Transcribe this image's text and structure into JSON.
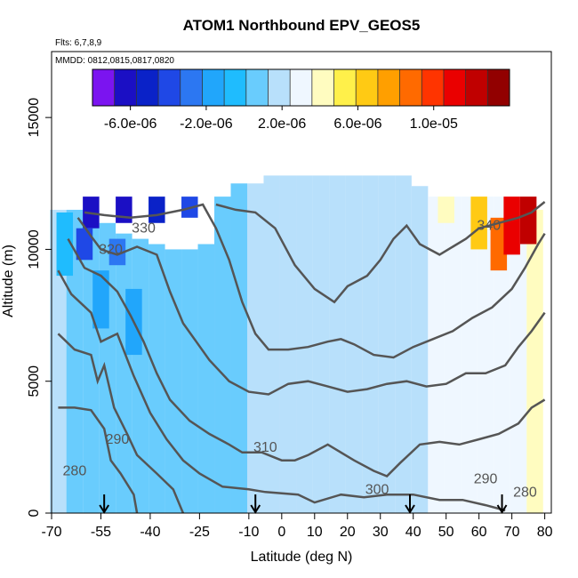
{
  "chart_data": {
    "type": "heatmap",
    "title": "ATOM1 Northbound EPV_GEOS5",
    "flights_label": "Flts: 6,7,8,9",
    "dates_label": "MMDD: 0812,0815,0817,0820",
    "xlabel": "Latitude (deg N)",
    "ylabel": "Altitude (m)",
    "xlim": [
      -70,
      82
    ],
    "ylim": [
      0,
      17500
    ],
    "x_ticks": [
      -70,
      -55,
      -40,
      -25,
      -10,
      0,
      10,
      20,
      30,
      40,
      50,
      60,
      70,
      80
    ],
    "x_tick_labels": [
      "-70",
      "-55",
      "-40",
      "-25",
      "-10",
      "0",
      "10",
      "20",
      "30",
      "40",
      "50",
      "60",
      "70",
      "80"
    ],
    "y_ticks": [
      0,
      5000,
      10000,
      15000
    ],
    "y_tick_labels": [
      "0",
      "5000",
      "10000",
      "15000"
    ],
    "colorbar": {
      "min": -8e-06,
      "max": 1.4e-05,
      "tick_values": [
        -6e-06,
        -2e-06,
        2e-06,
        6e-06,
        1e-05
      ],
      "tick_labels": [
        "-6.0e-06",
        "-2.0e-06",
        "2.0e-06",
        "6.0e-06",
        "1.0e-05"
      ],
      "colors": [
        "#7b14f0",
        "#1b0fc4",
        "#0a22c8",
        "#1f48e6",
        "#2c77f2",
        "#21a6fb",
        "#1fbcfe",
        "#69ccfd",
        "#b8e0fb",
        "#eff7ff",
        "#fffcc0",
        "#fff04a",
        "#ffca14",
        "#ff9f00",
        "#ff6a00",
        "#ff3400",
        "#ea0000",
        "#c00000",
        "#920000"
      ]
    },
    "cells": [
      [
        -68,
        0,
        11500,
        1.6e-06
      ],
      [
        -63,
        0,
        11500,
        1.2e-06
      ],
      [
        -58,
        0,
        11500,
        6e-07
      ],
      [
        -53,
        0,
        11000,
        8e-07
      ],
      [
        -48,
        0,
        10600,
        6e-07
      ],
      [
        -43,
        0,
        10400,
        8e-07
      ],
      [
        -38,
        0,
        10200,
        1e-06
      ],
      [
        -33,
        0,
        10000,
        1.2e-06
      ],
      [
        -28,
        0,
        10000,
        1.2e-06
      ],
      [
        -23,
        0,
        10200,
        1.2e-06
      ],
      [
        -18,
        0,
        12000,
        1.2e-06
      ],
      [
        -13,
        0,
        12500,
        1.2e-06
      ],
      [
        -8,
        0,
        12500,
        1.4e-06
      ],
      [
        -3,
        0,
        12800,
        1.4e-06
      ],
      [
        2,
        0,
        12800,
        1.4e-06
      ],
      [
        7,
        0,
        12800,
        1.6e-06
      ],
      [
        12,
        0,
        12800,
        1.6e-06
      ],
      [
        17,
        0,
        12800,
        1.8e-06
      ],
      [
        22,
        0,
        12800,
        1.8e-06
      ],
      [
        27,
        0,
        12800,
        2e-06
      ],
      [
        32,
        0,
        12800,
        2e-06
      ],
      [
        37,
        0,
        12800,
        2.2e-06
      ],
      [
        42,
        0,
        12400,
        2.4e-06
      ],
      [
        47,
        0,
        12000,
        2.6e-06
      ],
      [
        52,
        0,
        12000,
        2.6e-06
      ],
      [
        57,
        0,
        12000,
        2.8e-06
      ],
      [
        62,
        0,
        12000,
        3e-06
      ],
      [
        67,
        0,
        12000,
        3.2e-06
      ],
      [
        72,
        0,
        12000,
        3.4e-06
      ],
      [
        77,
        0,
        11500,
        3.6e-06
      ],
      [
        -66,
        9000,
        11400,
        -6e-07
      ],
      [
        -58,
        10800,
        12000,
        -6.6e-06
      ],
      [
        -48,
        11000,
        12000,
        -6e-06
      ],
      [
        -38,
        11000,
        12000,
        -5e-06
      ],
      [
        -28,
        11200,
        12000,
        -4e-06
      ],
      [
        -60,
        9600,
        10800,
        -3.6e-06
      ],
      [
        -50,
        9400,
        10400,
        -2.4e-06
      ],
      [
        -55,
        7000,
        9200,
        -1.6e-06
      ],
      [
        -45,
        6000,
        8500,
        -1.2e-06
      ],
      [
        50,
        11000,
        12000,
        4e-06
      ],
      [
        60,
        10000,
        12000,
        7e-06
      ],
      [
        66,
        9200,
        11200,
        9e-06
      ],
      [
        70,
        9800,
        12000,
        1.1e-05
      ],
      [
        75,
        10200,
        12000,
        1.25e-05
      ]
    ],
    "contours": [
      {
        "level": "280",
        "points": [
          [
            -68,
            4000
          ],
          [
            -63,
            4000
          ],
          [
            -58,
            3900
          ],
          [
            -54,
            3200
          ],
          [
            -52,
            2000
          ],
          [
            -49,
            1500
          ],
          [
            -45,
            700
          ],
          [
            -44,
            0
          ]
        ]
      },
      {
        "level": "290",
        "points": [
          [
            -68,
            6800
          ],
          [
            -63,
            6200
          ],
          [
            -58,
            6000
          ],
          [
            -56,
            5000
          ],
          [
            -54,
            5600
          ],
          [
            -51,
            4000
          ],
          [
            -47,
            3000
          ],
          [
            -44,
            2200
          ],
          [
            -38,
            1500
          ],
          [
            -33,
            900
          ],
          [
            -30,
            0
          ]
        ]
      },
      {
        "level": "300",
        "points": [
          [
            -68,
            9200
          ],
          [
            -64,
            8300
          ],
          [
            -58,
            7600
          ],
          [
            -55,
            6500
          ],
          [
            -50,
            6800
          ],
          [
            -45,
            5200
          ],
          [
            -40,
            3800
          ],
          [
            -35,
            2800
          ],
          [
            -30,
            2000
          ],
          [
            -25,
            1500
          ],
          [
            -18,
            1000
          ],
          [
            -10,
            900
          ],
          [
            -5,
            800
          ],
          [
            5,
            700
          ],
          [
            10,
            400
          ],
          [
            18,
            700
          ],
          [
            25,
            600
          ],
          [
            32,
            700
          ],
          [
            40,
            700
          ],
          [
            48,
            500
          ],
          [
            55,
            500
          ],
          [
            62,
            300
          ],
          [
            68,
            100
          ]
        ]
      },
      {
        "level": "310",
        "points": [
          [
            -65,
            10400
          ],
          [
            -60,
            9300
          ],
          [
            -55,
            9000
          ],
          [
            -50,
            8400
          ],
          [
            -46,
            7500
          ],
          [
            -42,
            6500
          ],
          [
            -38,
            5300
          ],
          [
            -34,
            4300
          ],
          [
            -28,
            3500
          ],
          [
            -22,
            3000
          ],
          [
            -16,
            2600
          ],
          [
            -12,
            2300
          ],
          [
            -6,
            2300
          ],
          [
            0,
            2000
          ],
          [
            4,
            2000
          ],
          [
            8,
            2200
          ],
          [
            14,
            2600
          ],
          [
            22,
            2000
          ],
          [
            28,
            1600
          ],
          [
            32,
            1400
          ],
          [
            36,
            1900
          ],
          [
            42,
            2600
          ],
          [
            48,
            2700
          ],
          [
            54,
            2600
          ],
          [
            60,
            2800
          ],
          [
            66,
            3000
          ],
          [
            72,
            3400
          ],
          [
            76,
            4000
          ],
          [
            80,
            4300
          ]
        ]
      },
      {
        "level": "320",
        "points": [
          [
            -62,
            11200
          ],
          [
            -58,
            10500
          ],
          [
            -55,
            10000
          ],
          [
            -50,
            9800
          ],
          [
            -44,
            10100
          ],
          [
            -38,
            9800
          ],
          [
            -34,
            8400
          ],
          [
            -30,
            7200
          ],
          [
            -26,
            6500
          ],
          [
            -22,
            5800
          ],
          [
            -16,
            5000
          ],
          [
            -10,
            4600
          ],
          [
            -4,
            4500
          ],
          [
            2,
            4900
          ],
          [
            8,
            5000
          ],
          [
            14,
            4800
          ],
          [
            20,
            4600
          ],
          [
            26,
            4700
          ],
          [
            32,
            4900
          ],
          [
            38,
            5000
          ],
          [
            44,
            4800
          ],
          [
            50,
            4900
          ],
          [
            56,
            5300
          ],
          [
            62,
            5300
          ],
          [
            68,
            5600
          ],
          [
            72,
            6300
          ],
          [
            76,
            6900
          ],
          [
            80,
            7600
          ]
        ]
      },
      {
        "level": "330",
        "points": [
          [
            -60,
            11400
          ],
          [
            -54,
            11300
          ],
          [
            -46,
            11200
          ],
          [
            -38,
            11300
          ],
          [
            -30,
            11500
          ],
          [
            -24,
            11700
          ],
          [
            -20,
            10800
          ],
          [
            -16,
            9600
          ],
          [
            -12,
            8000
          ],
          [
            -8,
            6800
          ],
          [
            -4,
            6200
          ],
          [
            2,
            6200
          ],
          [
            8,
            6300
          ],
          [
            14,
            6500
          ],
          [
            18,
            6600
          ],
          [
            22,
            6400
          ],
          [
            28,
            6000
          ],
          [
            34,
            5900
          ],
          [
            40,
            6300
          ],
          [
            46,
            6600
          ],
          [
            52,
            6900
          ],
          [
            58,
            7400
          ],
          [
            64,
            7800
          ],
          [
            70,
            8500
          ],
          [
            74,
            9300
          ],
          [
            78,
            10200
          ],
          [
            80,
            10600
          ]
        ]
      },
      {
        "level": "340",
        "points": [
          [
            -20,
            11700
          ],
          [
            -14,
            11500
          ],
          [
            -8,
            11400
          ],
          [
            -2,
            10800
          ],
          [
            4,
            9400
          ],
          [
            10,
            8500
          ],
          [
            16,
            8000
          ],
          [
            20,
            8600
          ],
          [
            26,
            9000
          ],
          [
            30,
            9600
          ],
          [
            34,
            10400
          ],
          [
            38,
            10900
          ],
          [
            42,
            10200
          ],
          [
            48,
            9800
          ],
          [
            52,
            10100
          ],
          [
            56,
            10400
          ],
          [
            60,
            10800
          ],
          [
            66,
            11000
          ],
          [
            72,
            11200
          ],
          [
            76,
            11400
          ],
          [
            80,
            11800
          ]
        ]
      }
    ],
    "contour_labels": [
      {
        "text": "330",
        "x": -42,
        "y": 10800
      },
      {
        "text": "320",
        "x": -52,
        "y": 10000
      },
      {
        "text": "290",
        "x": -50,
        "y": 2800
      },
      {
        "text": "280",
        "x": -63,
        "y": 1600
      },
      {
        "text": "310",
        "x": -5,
        "y": 2500
      },
      {
        "text": "300",
        "x": 29,
        "y": 900
      },
      {
        "text": "340",
        "x": 63,
        "y": 10900
      },
      {
        "text": "290",
        "x": 62,
        "y": 1300
      },
      {
        "text": "280",
        "x": 74,
        "y": 800
      }
    ],
    "arrows_at_latitude": [
      -54,
      -8,
      39,
      67
    ]
  }
}
